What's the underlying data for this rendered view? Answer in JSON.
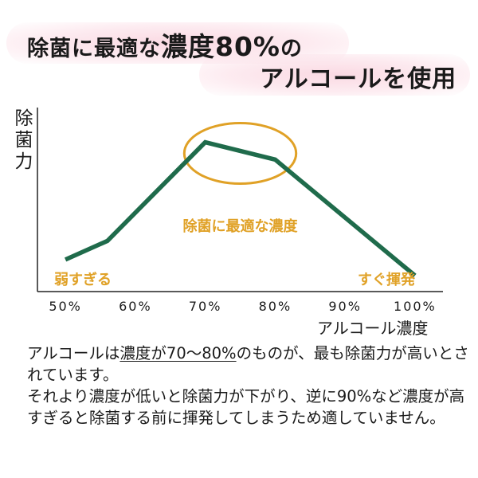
{
  "title": {
    "line1_a": "除菌に最適な",
    "line1_b": "濃度80%",
    "line1_c": "の",
    "line2": "アルコールを使用"
  },
  "colors": {
    "line": "#1f6b4b",
    "accent": "#e0a126",
    "glow": "#f9d3de",
    "axis": "#222222"
  },
  "chart_data": {
    "type": "line",
    "title": "",
    "xlabel": "アルコール濃度",
    "ylabel": "除菌力",
    "categories": [
      "50%",
      "60%",
      "70%",
      "80%",
      "90%",
      "100%"
    ],
    "x": [
      50,
      56,
      70,
      80,
      100
    ],
    "series": [
      {
        "values": [
          12,
          26,
          100,
          87,
          0
        ]
      }
    ],
    "xlim": [
      46,
      104
    ],
    "ylim": [
      -12,
      126
    ],
    "y_ticks_shown": false,
    "grid": false,
    "annotations": [
      {
        "text": "弱すぎる",
        "x": 50,
        "y": -3
      },
      {
        "text": "除菌に最適な濃度",
        "x": 75,
        "y": 37,
        "highlight": "ellipse",
        "from_x": 67,
        "to_x": 83
      },
      {
        "text": "すぐ揮発",
        "x": 100,
        "y": -3
      }
    ]
  },
  "body": {
    "p1_a": "アルコールは",
    "p1_ul": "濃度が70～80%",
    "p1_b": "のものが、最も除菌力が高いとされています。",
    "p2": "それより濃度が低いと除菌力が下がり、逆に90%など濃度が高すぎると除菌する前に揮発してしまうため適していません。"
  }
}
